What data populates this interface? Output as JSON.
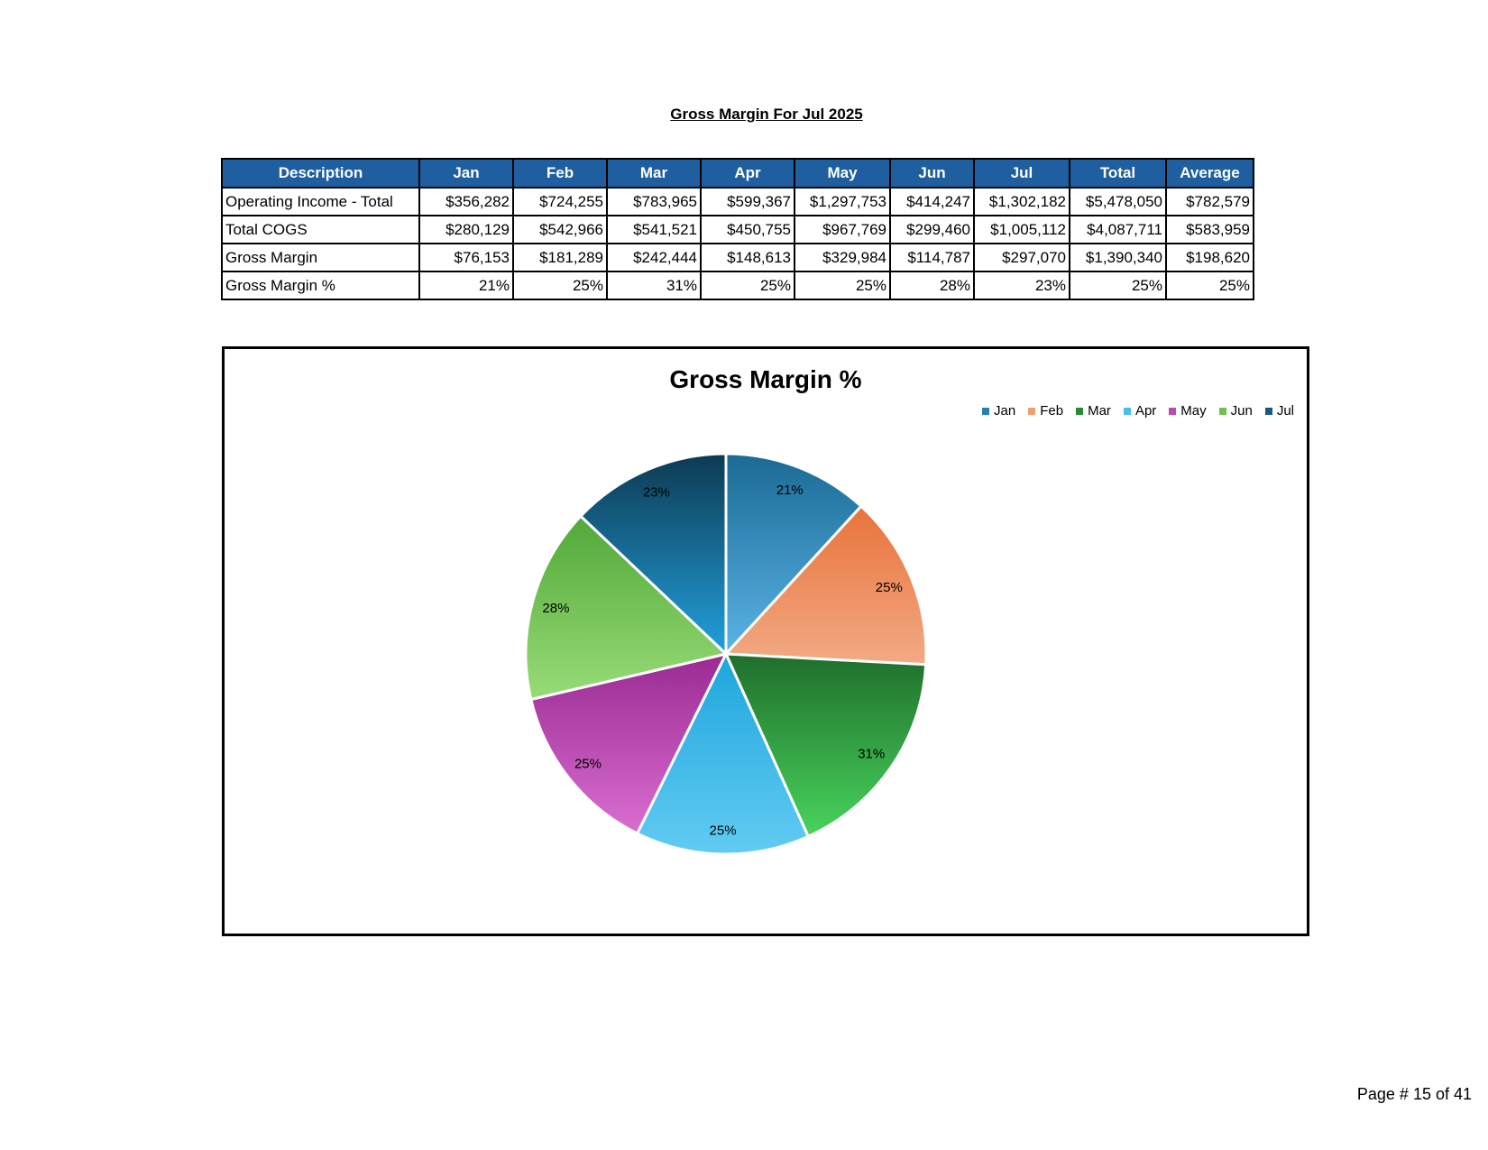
{
  "report": {
    "title": "Gross Margin For Jul 2025"
  },
  "table": {
    "headers": [
      "Description",
      "Jan",
      "Feb",
      "Mar",
      "Apr",
      "May",
      "Jun",
      "Jul",
      "Total",
      "Average"
    ],
    "rows": [
      [
        "Operating Income - Total",
        "$356,282",
        "$724,255",
        "$783,965",
        "$599,367",
        "$1,297,753",
        "$414,247",
        "$1,302,182",
        "$5,478,050",
        "$782,579"
      ],
      [
        "Total COGS",
        "$280,129",
        "$542,966",
        "$541,521",
        "$450,755",
        "$967,769",
        "$299,460",
        "$1,005,112",
        "$4,087,711",
        "$583,959"
      ],
      [
        "Gross Margin",
        "$76,153",
        "$181,289",
        "$242,444",
        "$148,613",
        "$329,984",
        "$114,787",
        "$297,070",
        "$1,390,340",
        "$198,620"
      ],
      [
        "Gross Margin %",
        "21%",
        "25%",
        "31%",
        "25%",
        "25%",
        "28%",
        "23%",
        "25%",
        "25%"
      ]
    ]
  },
  "chart_data": {
    "type": "pie",
    "title": "Gross Margin %",
    "categories": [
      "Jan",
      "Feb",
      "Mar",
      "Apr",
      "May",
      "Jun",
      "Jul"
    ],
    "values": [
      21,
      25,
      31,
      25,
      25,
      28,
      23
    ],
    "data_labels": [
      "21%",
      "25%",
      "31%",
      "25%",
      "25%",
      "28%",
      "23%"
    ],
    "legend_position": "top-right",
    "colors": [
      {
        "top": "#1a6a94",
        "bottom": "#5ab4e6",
        "legend": "#2a7fb0"
      },
      {
        "top": "#e8733a",
        "bottom": "#f2aa85",
        "legend": "#f0a070"
      },
      {
        "top": "#1f6e2c",
        "bottom": "#48d45c",
        "legend": "#2a8a38"
      },
      {
        "top": "#1ea6dc",
        "bottom": "#62cbf2",
        "legend": "#4cbde8"
      },
      {
        "top": "#9a2a92",
        "bottom": "#d96ed0",
        "legend": "#b94ab0"
      },
      {
        "top": "#52a838",
        "bottom": "#98dc78",
        "legend": "#70c050"
      },
      {
        "top": "#0d3a52",
        "bottom": "#22a0dc",
        "legend": "#1a5a80"
      }
    ]
  },
  "footer": {
    "page": "Page # 15 of  41"
  }
}
